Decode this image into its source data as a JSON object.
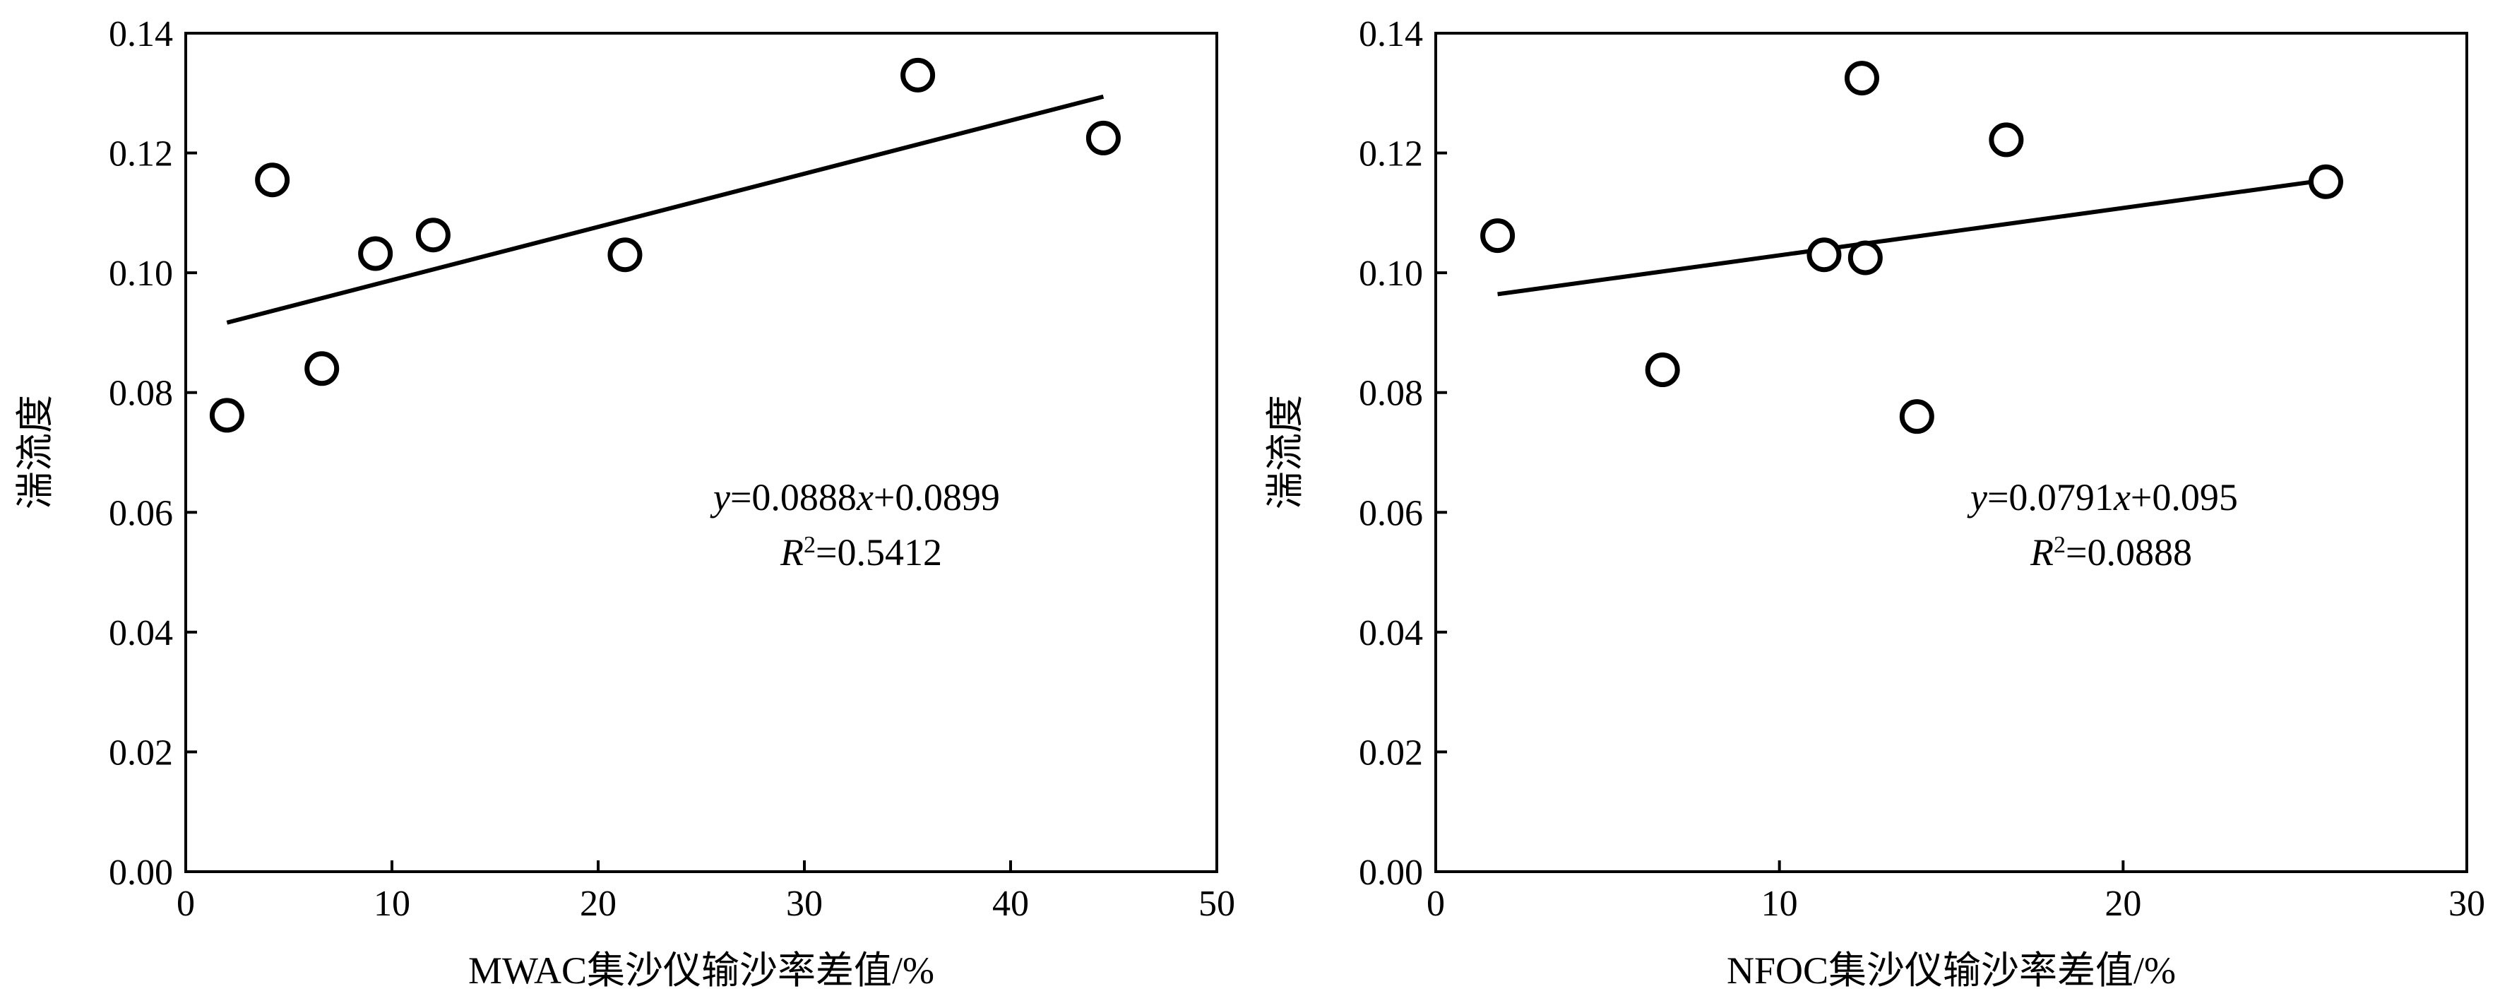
{
  "chart_data": [
    {
      "type": "scatter",
      "xlabel": "MWAC集沙仪输沙率差值/%",
      "ylabel": "湍流度",
      "xlim": [
        0,
        50
      ],
      "ylim": [
        0,
        0.14
      ],
      "x_ticks": [
        "0",
        "10",
        "20",
        "30",
        "40",
        "50"
      ],
      "y_ticks": [
        "0.00",
        "0.02",
        "0.04",
        "0.06",
        "0.08",
        "0.10",
        "0.12",
        "0.14"
      ],
      "grid": false,
      "series": [
        {
          "marker": "open-circle",
          "points": [
            {
              "x": 2.0,
              "y": 0.0762
            },
            {
              "x": 4.2,
              "y": 0.1155
            },
            {
              "x": 6.6,
              "y": 0.084
            },
            {
              "x": 9.2,
              "y": 0.1032
            },
            {
              "x": 12.0,
              "y": 0.1063
            },
            {
              "x": 21.3,
              "y": 0.103
            },
            {
              "x": 35.5,
              "y": 0.133
            },
            {
              "x": 44.5,
              "y": 0.1225
            }
          ]
        }
      ],
      "fit": {
        "slope": 0.000888,
        "intercept": 0.0899,
        "x_range": [
          2.0,
          44.5
        ],
        "equation_y": "y",
        "equation_mid": "=0.0888",
        "equation_x": "x",
        "equation_rest": "+0.0899",
        "r2_r": "R",
        "r2_sup": "2",
        "r2_rest": "=0.5412"
      }
    },
    {
      "type": "scatter",
      "xlabel": "NFOC集沙仪输沙率差值/%",
      "ylabel": "湍流度",
      "xlim": [
        0,
        30
      ],
      "ylim": [
        0,
        0.14
      ],
      "x_ticks": [
        "0",
        "10",
        "20",
        "30"
      ],
      "y_ticks": [
        "0.00",
        "0.02",
        "0.04",
        "0.06",
        "0.08",
        "0.10",
        "0.12",
        "0.14"
      ],
      "grid": false,
      "series": [
        {
          "marker": "open-circle",
          "points": [
            {
              "x": 1.8,
              "y": 0.1062
            },
            {
              "x": 6.6,
              "y": 0.0838
            },
            {
              "x": 11.3,
              "y": 0.103
            },
            {
              "x": 12.4,
              "y": 0.1325
            },
            {
              "x": 12.5,
              "y": 0.1025
            },
            {
              "x": 14.0,
              "y": 0.076
            },
            {
              "x": 16.6,
              "y": 0.1222
            },
            {
              "x": 25.9,
              "y": 0.1152
            }
          ]
        }
      ],
      "fit": {
        "slope": 0.000791,
        "intercept": 0.095,
        "x_range": [
          1.8,
          25.9
        ],
        "equation_y": "y",
        "equation_mid": "=0.0791",
        "equation_x": "x",
        "equation_rest": "+0.095",
        "r2_r": "R",
        "r2_sup": "2",
        "r2_rest": "=0.0888"
      }
    }
  ]
}
